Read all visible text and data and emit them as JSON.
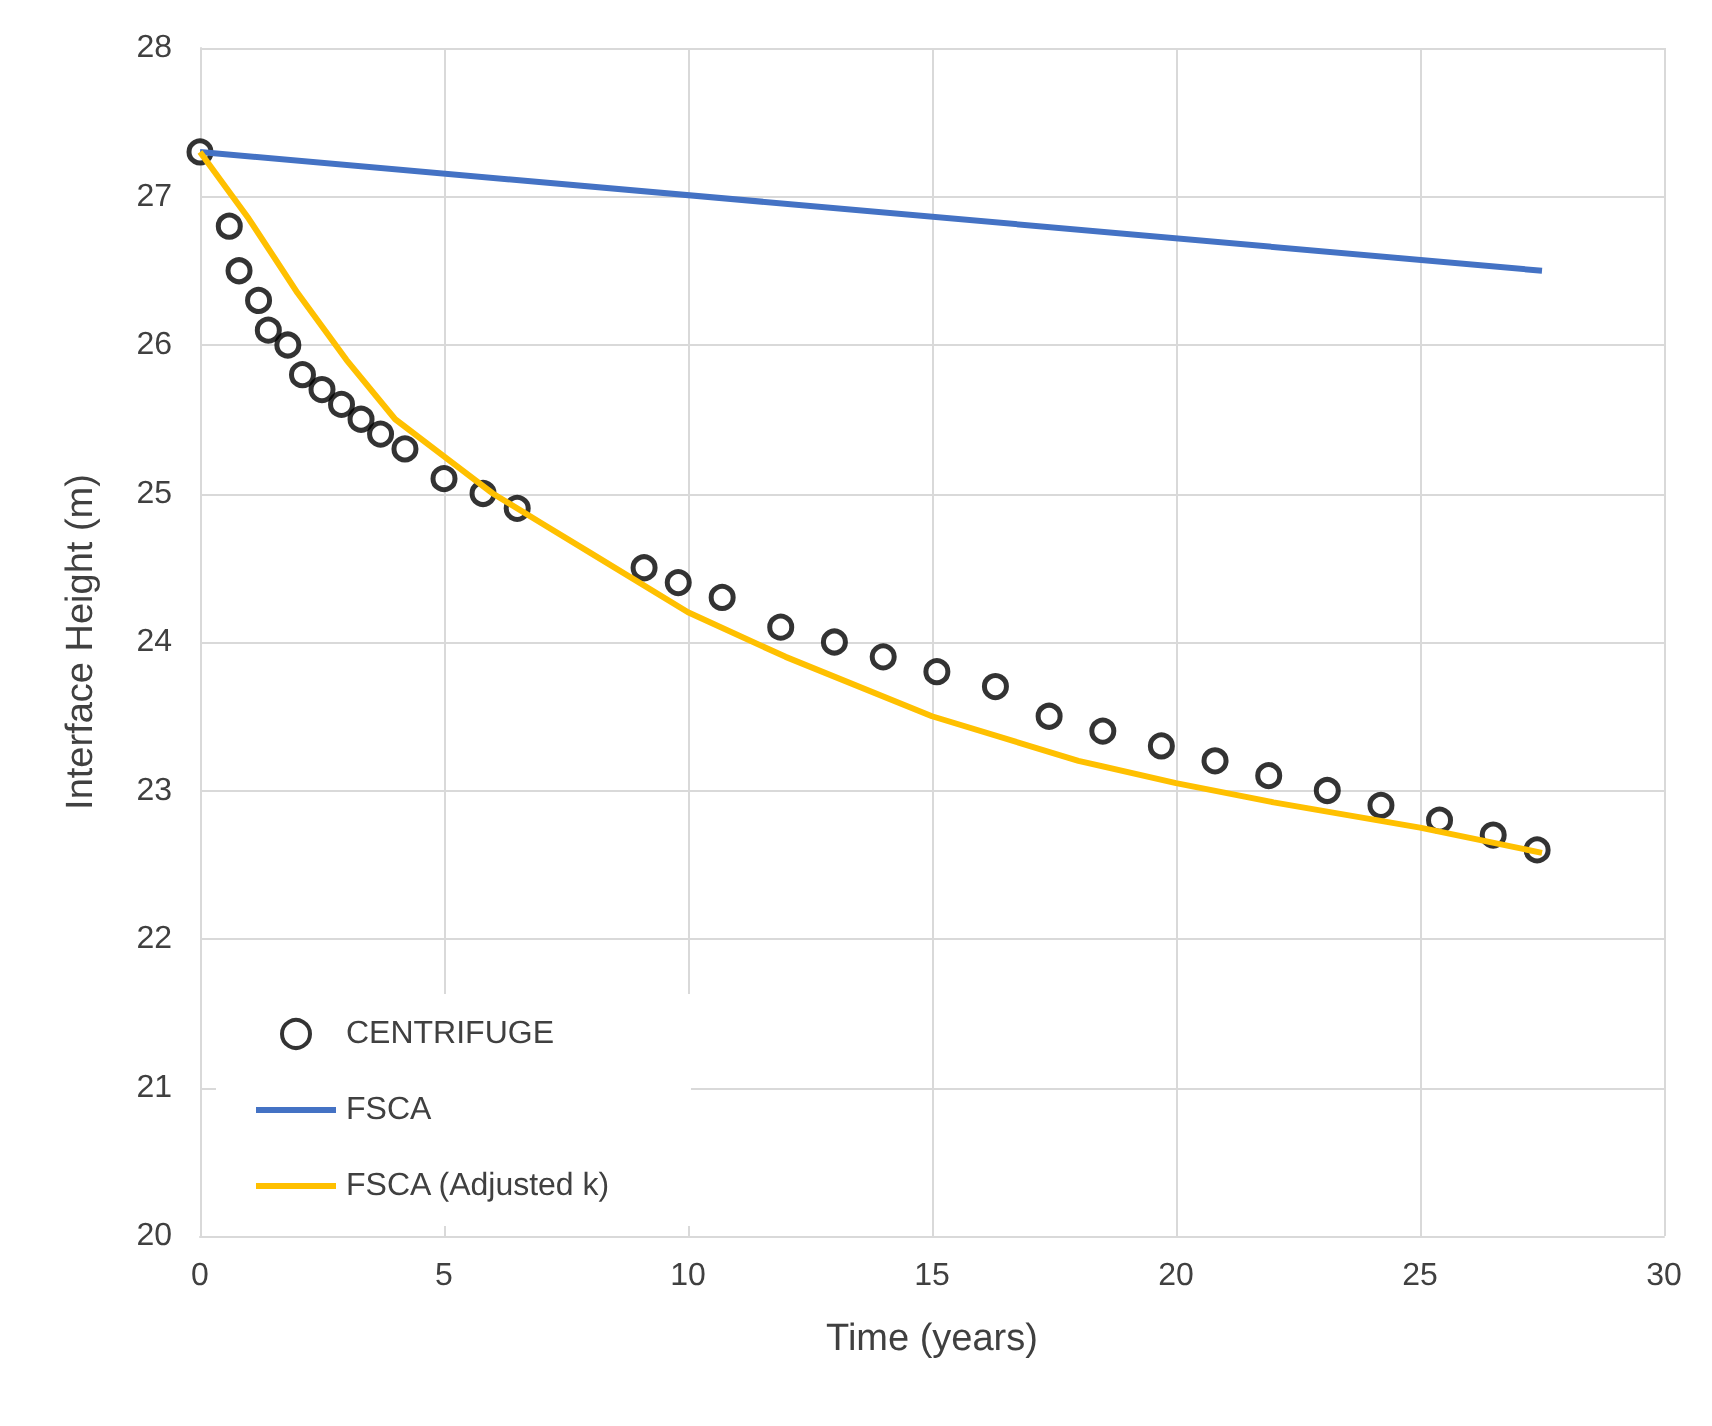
{
  "chart_data": {
    "type": "line",
    "xlabel": "Time (years)",
    "ylabel": "Interface Height (m)",
    "xlim": [
      0,
      30
    ],
    "xticks": [
      0,
      5,
      10,
      15,
      20,
      25,
      30
    ],
    "ylim": [
      20,
      28
    ],
    "yticks": [
      20,
      21,
      22,
      23,
      24,
      25,
      26,
      27,
      28
    ],
    "grid": true,
    "legend": "bottom left",
    "series": [
      {
        "name": "CENTRIFUGE",
        "type": "scatter",
        "marker": "circle",
        "color": "#000000",
        "x": [
          0,
          0.6,
          0.8,
          1.2,
          1.4,
          1.8,
          2.1,
          2.5,
          2.9,
          3.3,
          3.7,
          4.2,
          5.0,
          5.8,
          6.5,
          9.1,
          9.8,
          10.7,
          11.9,
          13.0,
          14.0,
          15.1,
          16.3,
          17.4,
          18.5,
          19.7,
          20.8,
          21.9,
          23.1,
          24.2,
          25.4,
          26.5,
          27.4
        ],
        "values": [
          27.3,
          26.8,
          26.5,
          26.3,
          26.1,
          26.0,
          25.8,
          25.7,
          25.6,
          25.5,
          25.4,
          25.3,
          25.1,
          25.0,
          24.9,
          24.5,
          24.4,
          24.3,
          24.1,
          24.0,
          23.9,
          23.8,
          23.7,
          23.5,
          23.4,
          23.3,
          23.2,
          23.1,
          23.0,
          22.9,
          22.8,
          22.7,
          22.6
        ]
      },
      {
        "name": "FSCA",
        "marker": "none",
        "color": "#4472c4",
        "x": [
          0,
          27.5
        ],
        "values": [
          27.3,
          26.5
        ]
      },
      {
        "name": "FSCA (Adjusted k)",
        "marker": "none",
        "color": "#ffc000",
        "x": [
          0,
          1,
          2,
          3,
          4,
          5,
          6,
          7,
          8,
          10,
          12,
          15,
          18,
          20,
          22,
          25,
          27.5
        ],
        "values": [
          27.3,
          26.85,
          26.35,
          25.9,
          25.5,
          25.25,
          25.0,
          24.8,
          24.6,
          24.2,
          23.9,
          23.5,
          23.2,
          23.05,
          22.92,
          22.75,
          22.58
        ]
      }
    ]
  }
}
